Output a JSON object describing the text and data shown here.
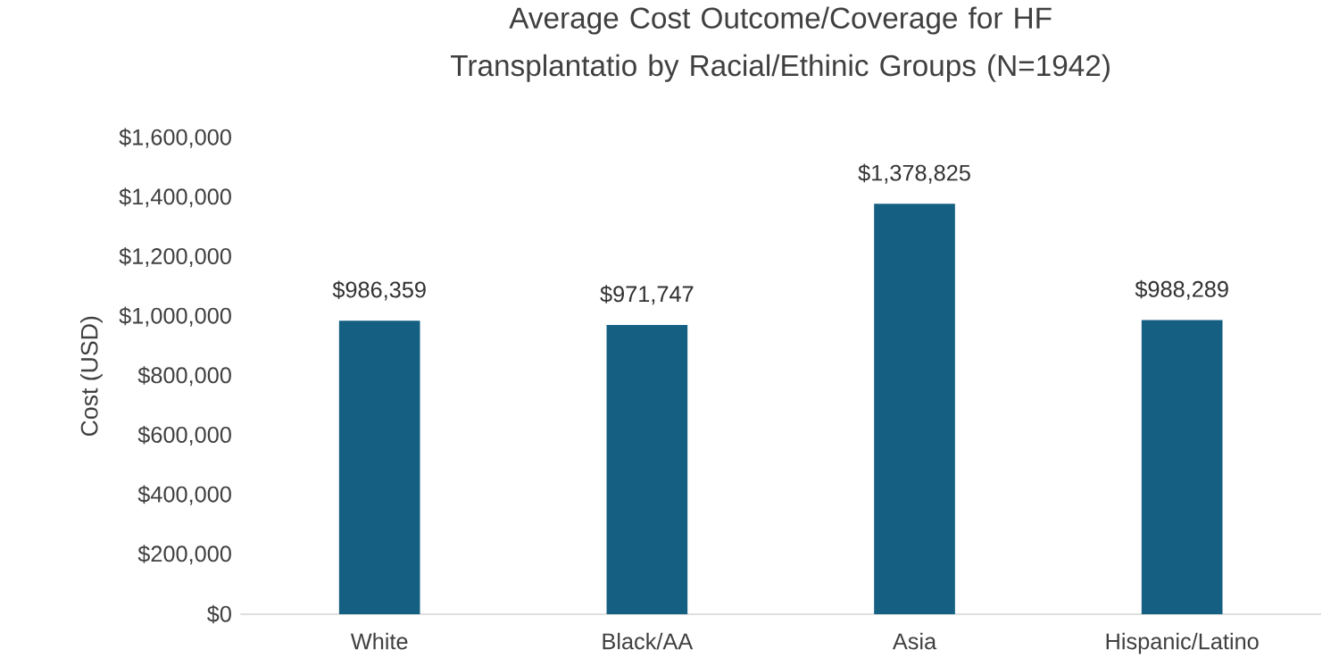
{
  "chart_data": {
    "type": "bar",
    "title": "Average Cost Outcome/Coverage for HF Transplantatio by Racial/Ethinic Groups (N=1942)",
    "ylabel": "Cost (USD)",
    "categories": [
      "White",
      "Black/AA",
      "Asia",
      "Hispanic/Latino"
    ],
    "values": [
      986359,
      971747,
      1378825,
      988289
    ],
    "value_labels": [
      "$986,359",
      "$971,747",
      "$1,378,825",
      "$988,289"
    ],
    "color": "#156082",
    "ylim": [
      0,
      1600000
    ],
    "yticks": [
      {
        "value": 0,
        "label": "$0"
      },
      {
        "value": 200000,
        "label": "$200,000"
      },
      {
        "value": 400000,
        "label": "$400,000"
      },
      {
        "value": 600000,
        "label": "$600,000"
      },
      {
        "value": 800000,
        "label": "$800,000"
      },
      {
        "value": 1000000,
        "label": "$1,000,000"
      },
      {
        "value": 1200000,
        "label": "$1,200,000"
      },
      {
        "value": 1400000,
        "label": "$1,400,000"
      },
      {
        "value": 1600000,
        "label": "$1,600,000"
      }
    ]
  }
}
